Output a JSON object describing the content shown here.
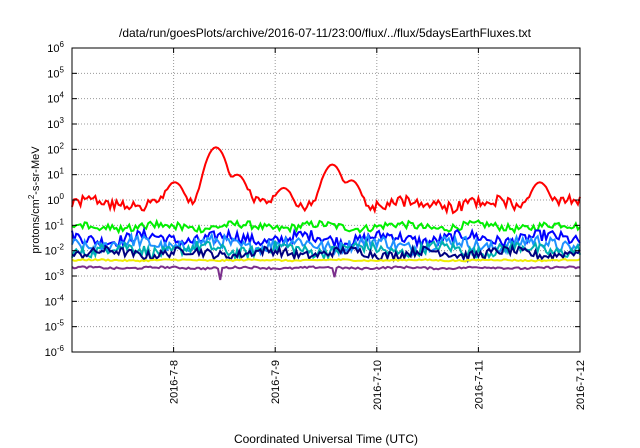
{
  "chart_data": {
    "type": "line",
    "title": "/data/run/goesPlots/archive/2016-07-11/23:00/flux/../flux/5daysEarthFluxes.txt",
    "xlabel": "Coordinated Universal Time (UTC)",
    "ylabel": {
      "base": "protons/cm",
      "sup": "2",
      "rest": "-s-sr-MeV"
    },
    "yscale": "log",
    "ylim_exp": [
      -6,
      6
    ],
    "xlim": [
      "2016-07-07",
      "2016-07-12"
    ],
    "xticks": [
      "2016-7-8",
      "2016-7-9",
      "2016-7-10",
      "2016-7-11",
      "2016-7-12"
    ],
    "grid": true,
    "series": [
      {
        "color": "#ff0000",
        "base": 0.7,
        "spread": 0.45,
        "spikes": [
          {
            "x": "2016-07-08 00:15",
            "y": 5.0
          },
          {
            "x": "2016-07-08 10:00",
            "y": 120
          },
          {
            "x": "2016-07-08 15:00",
            "y": 10
          },
          {
            "x": "2016-07-09 13:30",
            "y": 25
          },
          {
            "x": "2016-07-09 02:00",
            "y": 3
          },
          {
            "x": "2016-07-09 18:00",
            "y": 6
          },
          {
            "x": "2016-07-11 14:30",
            "y": 5
          }
        ]
      },
      {
        "color": "#00ee00",
        "base": 0.09,
        "spread": 0.3
      },
      {
        "color": "#0000ff",
        "base": 0.03,
        "spread": 0.45
      },
      {
        "color": "#1e90ff",
        "base": 0.018,
        "spread": 0.5
      },
      {
        "color": "#00b0b0",
        "base": 0.011,
        "spread": 0.45
      },
      {
        "color": "#000080",
        "base": 0.008,
        "spread": 0.35
      },
      {
        "color": "#eeee00",
        "base": 0.0042,
        "spread": 0.06
      },
      {
        "color": "#7b2f8c",
        "base": 0.0021,
        "spread": 0.08,
        "dips": [
          {
            "x": "2016-07-08 11:00",
            "y": 0.0007
          },
          {
            "x": "2016-07-09 14:00",
            "y": 0.0009
          }
        ]
      }
    ]
  }
}
